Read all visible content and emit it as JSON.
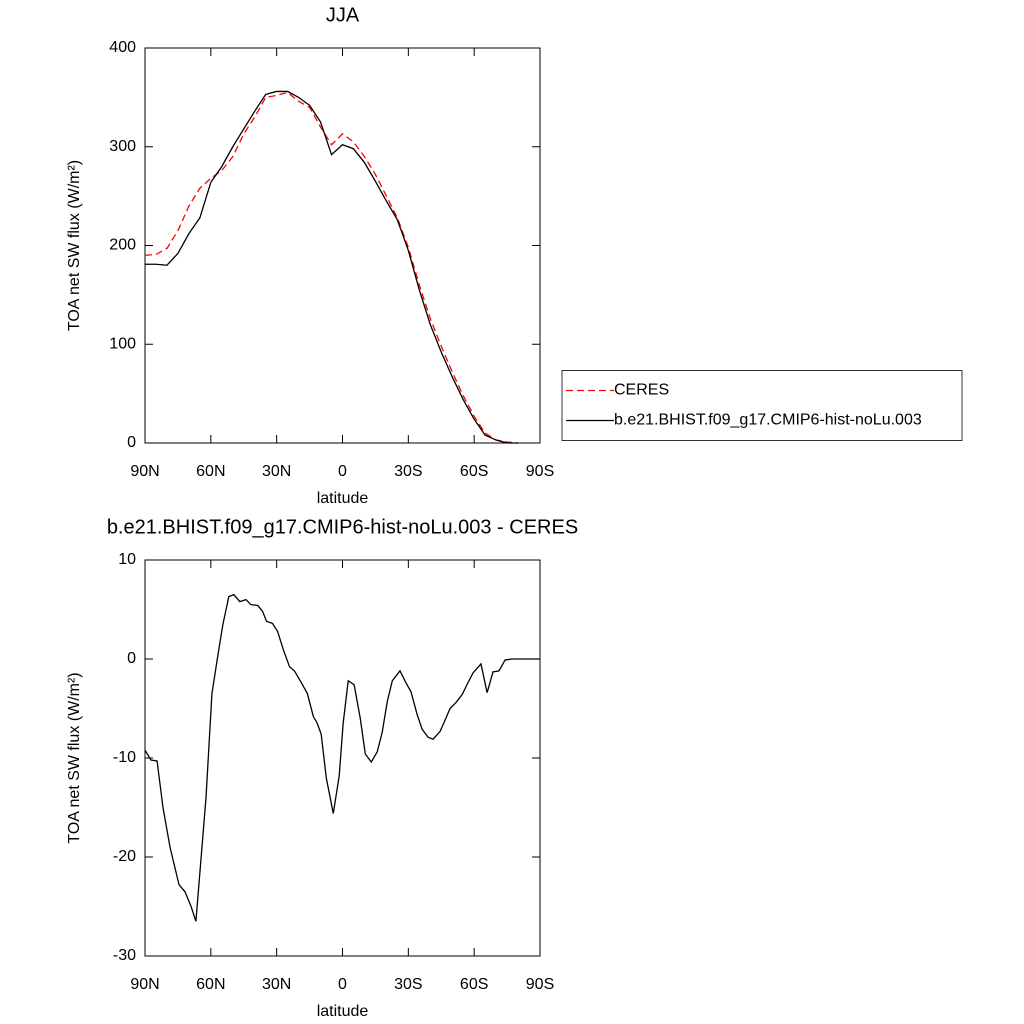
{
  "chart_data": [
    {
      "type": "line",
      "title": "JJA",
      "xlabel": "latitude",
      "ylabel": "TOA net SW flux (W/m²)",
      "xlim": [
        90,
        -90
      ],
      "xticks": [
        {
          "value": 90,
          "label": "90N"
        },
        {
          "value": 60,
          "label": "60N"
        },
        {
          "value": 30,
          "label": "30N"
        },
        0,
        {
          "value": -30,
          "label": "30S"
        },
        {
          "value": -60,
          "label": "60S"
        },
        {
          "value": -90,
          "label": "90S"
        }
      ],
      "ylim": [
        0,
        400
      ],
      "yticks": [
        0,
        100,
        200,
        300,
        400
      ],
      "legend": "right",
      "x": [
        90,
        85,
        80,
        75,
        70,
        65,
        60,
        55,
        50,
        45,
        40,
        35,
        30,
        25,
        20,
        15,
        10,
        5,
        0,
        -5,
        -10,
        -15,
        -20,
        -25,
        -30,
        -35,
        -40,
        -45,
        -50,
        -55,
        -60,
        -65,
        -70,
        -75,
        -80,
        -85,
        -90
      ],
      "series": [
        {
          "name": "CERES",
          "color": "#ff0000",
          "linestyle": "dashed",
          "values": [
            190,
            191,
            197,
            215,
            240,
            258,
            268,
            276,
            290,
            313,
            330,
            350,
            352,
            355,
            346,
            340,
            320,
            302,
            313,
            305,
            290,
            272,
            250,
            228,
            198,
            160,
            126,
            98,
            72,
            48,
            27,
            10,
            3,
            1,
            0,
            null,
            null
          ]
        },
        {
          "name": "b.e21.BHIST.f09_g17.CMIP6-hist-noLu.003",
          "color": "#000000",
          "linestyle": "solid",
          "values": [
            181,
            181,
            180,
            192,
            212,
            228,
            264,
            280,
            300,
            318,
            336,
            353,
            356,
            356,
            350,
            342,
            325,
            292,
            302,
            298,
            284,
            265,
            245,
            226,
            195,
            155,
            120,
            92,
            67,
            44,
            24,
            8,
            3,
            0,
            0,
            null,
            null
          ]
        }
      ]
    },
    {
      "type": "line",
      "title": "b.e21.BHIST.f09_g17.CMIP6-hist-noLu.003 - CERES",
      "xlabel": "latitude",
      "ylabel": "TOA net SW flux (W/m²)",
      "xlim": [
        90,
        -90
      ],
      "xticks": [
        {
          "value": 90,
          "label": "90N"
        },
        {
          "value": 60,
          "label": "60N"
        },
        {
          "value": 30,
          "label": "30N"
        },
        0,
        {
          "value": -30,
          "label": "30S"
        },
        {
          "value": -60,
          "label": "60S"
        },
        {
          "value": -90,
          "label": "90S"
        }
      ],
      "ylim": [
        -30,
        10
      ],
      "yticks": [
        -30,
        -20,
        -10,
        0,
        10
      ],
      "x": [
        90,
        87.3,
        84.5,
        81.8,
        78.6,
        74.5,
        71.8,
        69.0,
        66.8,
        62.2,
        59.5,
        56.7,
        54.5,
        51.8,
        49.5,
        46.8,
        44.0,
        41.8,
        38.6,
        36.4,
        34.6,
        31.9,
        29.6,
        26.9,
        24.1,
        21.9,
        18.7,
        16.0,
        13.3,
        11.5,
        9.7,
        7.4,
        4.2,
        1.5,
        -0.3,
        -2.6,
        -5.3,
        -8.1,
        -10.4,
        -13.1,
        -15.8,
        -18.1,
        -20.4,
        -22.7,
        -26.2,
        -28.9,
        -31.2,
        -34.0,
        -36.3,
        -39.0,
        -41.3,
        -44.5,
        -46.7,
        -49.0,
        -51.7,
        -54.5,
        -56.7,
        -59.5,
        -63.1,
        -65.9,
        -68.6,
        -71.3,
        -74.1,
        -77.3,
        -80.9,
        -90
      ],
      "series": [
        {
          "color": "#000000",
          "linestyle": "solid",
          "values": [
            -9.2,
            -10.2,
            -10.3,
            -15,
            -19,
            -22.8,
            -23.5,
            -25,
            -26.5,
            -14,
            -3.5,
            0.5,
            3.5,
            6.3,
            6.5,
            5.8,
            6,
            5.5,
            5.4,
            4.8,
            3.8,
            3.6,
            2.8,
            0.9,
            -0.8,
            -1.2,
            -2.4,
            -3.5,
            -5.8,
            -6.5,
            -7.6,
            -12,
            -15.6,
            -11.8,
            -6.5,
            -2.2,
            -2.6,
            -6,
            -9.6,
            -10.4,
            -9.4,
            -7.4,
            -4.3,
            -2.2,
            -1.2,
            -2.4,
            -3.3,
            -5.6,
            -7.1,
            -7.9,
            -8.1,
            -7.3,
            -6.2,
            -5,
            -4.4,
            -3.6,
            -2.6,
            -1.4,
            -0.5,
            -3.4,
            -1.3,
            -1.2,
            -0.1,
            0,
            0,
            0
          ]
        }
      ]
    }
  ]
}
